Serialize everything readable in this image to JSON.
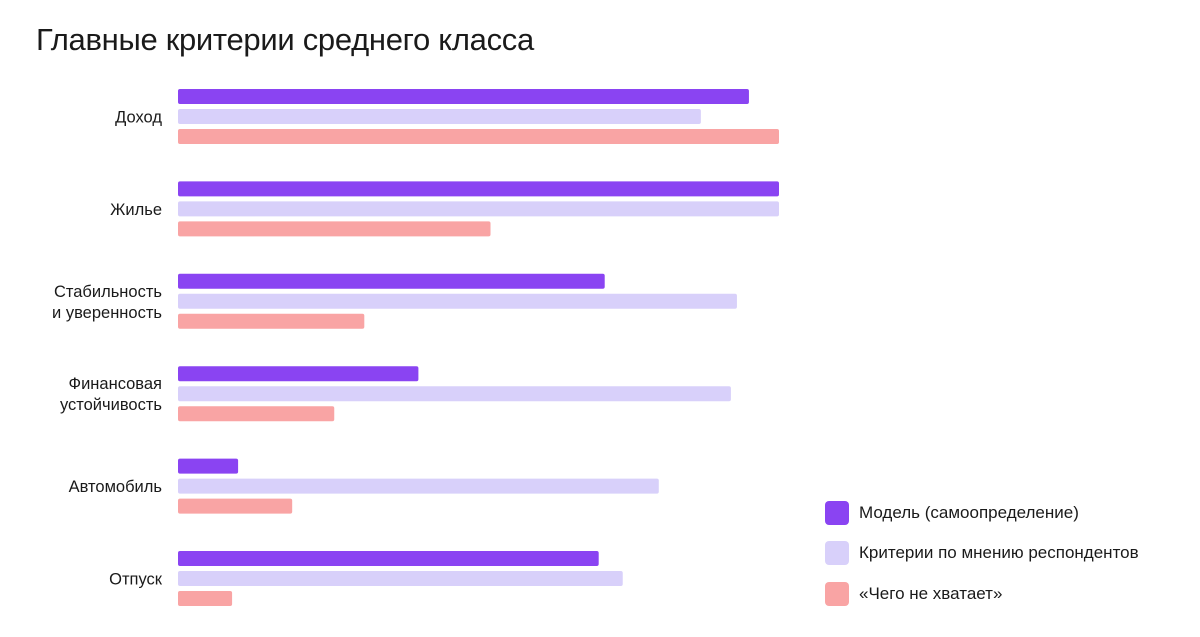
{
  "chart_data": {
    "type": "bar",
    "orientation": "horizontal",
    "title": "Главные критерии среднего класса",
    "categories": [
      [
        "Доход"
      ],
      [
        "Жилье"
      ],
      [
        "Стабильность",
        "и уверенность"
      ],
      [
        "Финансовая",
        "устойчивость"
      ],
      [
        "Автомобиль"
      ],
      [
        "Отпуск"
      ]
    ],
    "series": [
      {
        "name": "Модель (самоопределение)",
        "color": "#8a44f2",
        "values": [
          95,
          100,
          71,
          40,
          10,
          70
        ]
      },
      {
        "name": "Критерии по мнению респондентов",
        "color": "#d8d0fa",
        "values": [
          87,
          100,
          93,
          92,
          80,
          74
        ]
      },
      {
        "name": "«Чего не хватает»",
        "color": "#f9a4a4",
        "values": [
          100,
          52,
          31,
          26,
          19,
          9
        ]
      }
    ],
    "xlim": [
      0,
      100
    ],
    "xlabel": "",
    "ylabel": "",
    "grid": false,
    "axes_visible": false,
    "legend_position": "bottom-right"
  }
}
